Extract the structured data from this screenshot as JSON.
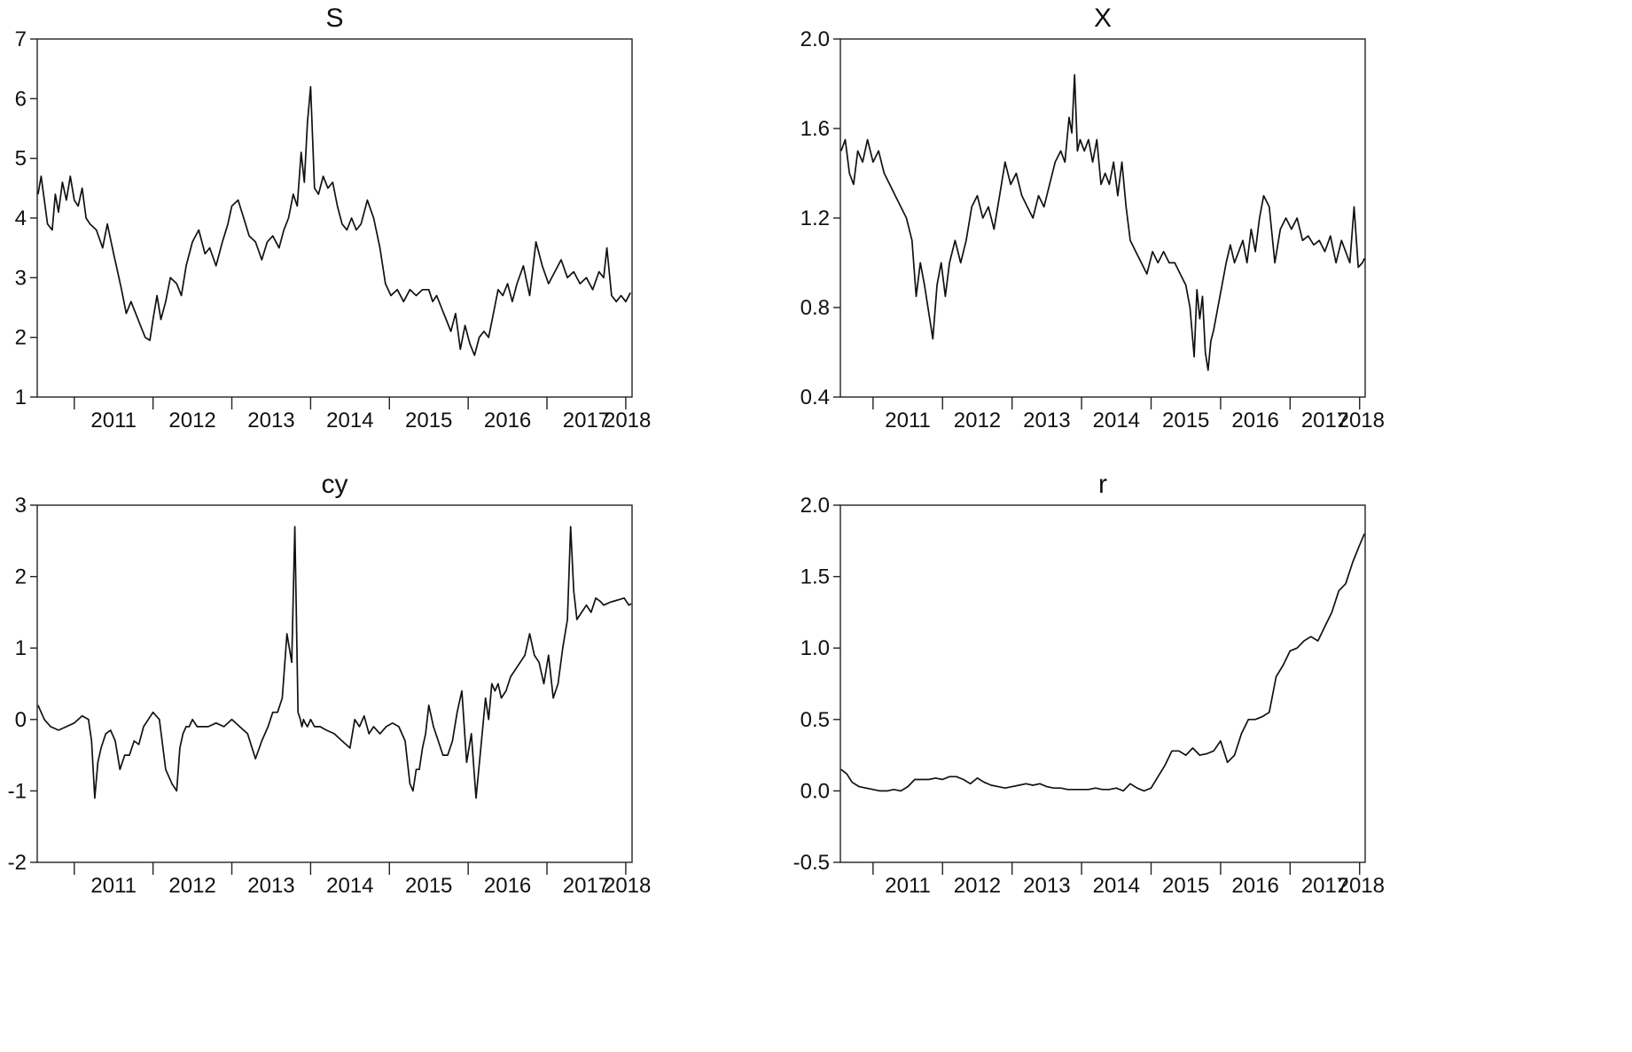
{
  "chart_data": [
    {
      "type": "line",
      "title": "S",
      "ylim": [
        1,
        7
      ],
      "yticks": [
        1,
        2,
        3,
        4,
        5,
        6,
        7
      ],
      "ytick_labels": [
        "1",
        "2",
        "3",
        "4",
        "5",
        "6",
        "7"
      ],
      "xlim": [
        2010.53,
        2018.08
      ],
      "xtick_labels": [
        "2011",
        "2012",
        "2013",
        "2014",
        "2015",
        "2016",
        "2017",
        "2018"
      ],
      "grid": false,
      "series": [
        {
          "x": [
            2010.54,
            2010.58,
            2010.62,
            2010.66,
            2010.72,
            2010.76,
            2010.8,
            2010.85,
            2010.9,
            2010.95,
            2011.0,
            2011.05,
            2011.1,
            2011.15,
            2011.2,
            2011.28,
            2011.36,
            2011.42,
            2011.5,
            2011.55,
            2011.6,
            2011.66,
            2011.72,
            2011.78,
            2011.84,
            2011.9,
            2011.96,
            2012.0,
            2012.05,
            2012.1,
            2012.16,
            2012.22,
            2012.3,
            2012.36,
            2012.42,
            2012.5,
            2012.58,
            2012.66,
            2012.72,
            2012.8,
            2012.88,
            2012.95,
            2013.0,
            2013.08,
            2013.15,
            2013.22,
            2013.3,
            2013.38,
            2013.45,
            2013.52,
            2013.6,
            2013.66,
            2013.72,
            2013.78,
            2013.83,
            2013.88,
            2013.92,
            2013.96,
            2014.0,
            2014.05,
            2014.1,
            2014.16,
            2014.22,
            2014.28,
            2014.34,
            2014.4,
            2014.46,
            2014.52,
            2014.58,
            2014.64,
            2014.72,
            2014.8,
            2014.88,
            2014.95,
            2015.02,
            2015.1,
            2015.18,
            2015.26,
            2015.34,
            2015.42,
            2015.5,
            2015.55,
            2015.6,
            2015.66,
            2015.72,
            2015.78,
            2015.84,
            2015.9,
            2015.96,
            2016.02,
            2016.08,
            2016.14,
            2016.2,
            2016.26,
            2016.32,
            2016.38,
            2016.44,
            2016.5,
            2016.56,
            2016.62,
            2016.7,
            2016.78,
            2016.86,
            2016.94,
            2017.02,
            2017.1,
            2017.18,
            2017.26,
            2017.34,
            2017.42,
            2017.5,
            2017.58,
            2017.66,
            2017.72,
            2017.76,
            2017.82,
            2017.88,
            2017.94,
            2018.0,
            2018.06
          ],
          "values": [
            4.4,
            4.7,
            4.3,
            3.9,
            3.8,
            4.4,
            4.1,
            4.6,
            4.3,
            4.7,
            4.3,
            4.2,
            4.5,
            4.0,
            3.9,
            3.8,
            3.5,
            3.9,
            3.4,
            3.1,
            2.8,
            2.4,
            2.6,
            2.4,
            2.2,
            2.0,
            1.95,
            2.3,
            2.7,
            2.3,
            2.6,
            3.0,
            2.9,
            2.7,
            3.2,
            3.6,
            3.8,
            3.4,
            3.5,
            3.2,
            3.6,
            3.9,
            4.2,
            4.3,
            4.0,
            3.7,
            3.6,
            3.3,
            3.6,
            3.7,
            3.5,
            3.8,
            4.0,
            4.4,
            4.2,
            5.1,
            4.6,
            5.6,
            6.2,
            4.5,
            4.4,
            4.7,
            4.5,
            4.6,
            4.2,
            3.9,
            3.8,
            4.0,
            3.8,
            3.9,
            4.3,
            4.0,
            3.5,
            2.9,
            2.7,
            2.8,
            2.6,
            2.8,
            2.7,
            2.8,
            2.8,
            2.6,
            2.7,
            2.5,
            2.3,
            2.1,
            2.4,
            1.8,
            2.2,
            1.9,
            1.7,
            2.0,
            2.1,
            2.0,
            2.4,
            2.8,
            2.7,
            2.9,
            2.6,
            2.9,
            3.2,
            2.7,
            3.6,
            3.2,
            2.9,
            3.1,
            3.3,
            3.0,
            3.1,
            2.9,
            3.0,
            2.8,
            3.1,
            3.0,
            3.5,
            2.7,
            2.6,
            2.7,
            2.6,
            2.75
          ]
        }
      ]
    },
    {
      "type": "line",
      "title": "X",
      "ylim": [
        0.4,
        2.0
      ],
      "yticks": [
        0.4,
        0.8,
        1.2,
        1.6,
        2.0
      ],
      "ytick_labels": [
        "0.4",
        "0.8",
        "1.2",
        "1.6",
        "2.0"
      ],
      "xlim": [
        2010.53,
        2018.08
      ],
      "xtick_labels": [
        "2011",
        "2012",
        "2013",
        "2014",
        "2015",
        "2016",
        "2017",
        "2018"
      ],
      "grid": false,
      "series": [
        {
          "x": [
            2010.54,
            2010.6,
            2010.66,
            2010.72,
            2010.78,
            2010.85,
            2010.92,
            2011.0,
            2011.08,
            2011.16,
            2011.24,
            2011.32,
            2011.4,
            2011.48,
            2011.56,
            2011.62,
            2011.68,
            2011.74,
            2011.8,
            2011.86,
            2011.92,
            2011.98,
            2012.04,
            2012.1,
            2012.18,
            2012.26,
            2012.34,
            2012.42,
            2012.5,
            2012.58,
            2012.66,
            2012.74,
            2012.82,
            2012.9,
            2012.98,
            2013.06,
            2013.14,
            2013.22,
            2013.3,
            2013.38,
            2013.46,
            2013.54,
            2013.62,
            2013.7,
            2013.76,
            2013.82,
            2013.86,
            2013.9,
            2013.94,
            2013.98,
            2014.04,
            2014.1,
            2014.16,
            2014.22,
            2014.28,
            2014.34,
            2014.4,
            2014.46,
            2014.52,
            2014.58,
            2014.64,
            2014.7,
            2014.78,
            2014.86,
            2014.94,
            2015.02,
            2015.1,
            2015.18,
            2015.26,
            2015.34,
            2015.42,
            2015.5,
            2015.56,
            2015.62,
            2015.66,
            2015.7,
            2015.74,
            2015.78,
            2015.82,
            2015.86,
            2015.9,
            2015.96,
            2016.02,
            2016.08,
            2016.14,
            2016.2,
            2016.26,
            2016.32,
            2016.38,
            2016.44,
            2016.5,
            2016.56,
            2016.62,
            2016.7,
            2016.78,
            2016.86,
            2016.94,
            2017.02,
            2017.1,
            2017.18,
            2017.26,
            2017.34,
            2017.42,
            2017.5,
            2017.58,
            2017.66,
            2017.74,
            2017.8,
            2017.86,
            2017.92,
            2017.98,
            2018.04,
            2018.07
          ],
          "values": [
            1.5,
            1.55,
            1.4,
            1.35,
            1.5,
            1.45,
            1.55,
            1.45,
            1.5,
            1.4,
            1.35,
            1.3,
            1.25,
            1.2,
            1.1,
            0.85,
            1.0,
            0.9,
            0.78,
            0.66,
            0.9,
            1.0,
            0.85,
            1.0,
            1.1,
            1.0,
            1.1,
            1.25,
            1.3,
            1.2,
            1.25,
            1.15,
            1.3,
            1.45,
            1.35,
            1.4,
            1.3,
            1.25,
            1.2,
            1.3,
            1.25,
            1.35,
            1.45,
            1.5,
            1.45,
            1.65,
            1.58,
            1.84,
            1.5,
            1.55,
            1.5,
            1.55,
            1.45,
            1.55,
            1.35,
            1.4,
            1.35,
            1.45,
            1.3,
            1.45,
            1.25,
            1.1,
            1.05,
            1.0,
            0.95,
            1.05,
            1.0,
            1.05,
            1.0,
            1.0,
            0.95,
            0.9,
            0.8,
            0.58,
            0.88,
            0.75,
            0.85,
            0.6,
            0.52,
            0.65,
            0.7,
            0.8,
            0.9,
            1.0,
            1.08,
            1.0,
            1.05,
            1.1,
            1.0,
            1.15,
            1.05,
            1.2,
            1.3,
            1.25,
            1.0,
            1.15,
            1.2,
            1.15,
            1.2,
            1.1,
            1.12,
            1.08,
            1.1,
            1.05,
            1.12,
            1.0,
            1.1,
            1.05,
            1.0,
            1.25,
            0.98,
            1.0,
            1.02
          ]
        }
      ]
    },
    {
      "type": "line",
      "title": "cy",
      "ylim": [
        -2,
        3
      ],
      "yticks": [
        -2,
        -1,
        0,
        1,
        2,
        3
      ],
      "ytick_labels": [
        "-2",
        "-1",
        "0",
        "1",
        "2",
        "3"
      ],
      "xlim": [
        2010.53,
        2018.08
      ],
      "xtick_labels": [
        "2011",
        "2012",
        "2013",
        "2014",
        "2015",
        "2016",
        "2017",
        "2018"
      ],
      "grid": false,
      "series": [
        {
          "x": [
            2010.54,
            2010.62,
            2010.7,
            2010.8,
            2010.9,
            2011.0,
            2011.1,
            2011.18,
            2011.22,
            2011.26,
            2011.3,
            2011.34,
            2011.4,
            2011.46,
            2011.52,
            2011.58,
            2011.64,
            2011.7,
            2011.76,
            2011.82,
            2011.88,
            2011.94,
            2012.0,
            2012.08,
            2012.16,
            2012.24,
            2012.3,
            2012.34,
            2012.38,
            2012.42,
            2012.46,
            2012.5,
            2012.56,
            2012.62,
            2012.7,
            2012.8,
            2012.9,
            2013.0,
            2013.1,
            2013.2,
            2013.3,
            2013.38,
            2013.46,
            2013.52,
            2013.58,
            2013.64,
            2013.7,
            2013.76,
            2013.8,
            2013.84,
            2013.87,
            2013.89,
            2013.91,
            2013.93,
            2013.96,
            2014.0,
            2014.05,
            2014.12,
            2014.2,
            2014.3,
            2014.4,
            2014.5,
            2014.56,
            2014.62,
            2014.68,
            2014.74,
            2014.8,
            2014.88,
            2014.96,
            2015.04,
            2015.12,
            2015.2,
            2015.26,
            2015.3,
            2015.34,
            2015.38,
            2015.42,
            2015.46,
            2015.5,
            2015.56,
            2015.62,
            2015.68,
            2015.74,
            2015.8,
            2015.86,
            2015.92,
            2015.98,
            2016.04,
            2016.1,
            2016.16,
            2016.22,
            2016.26,
            2016.3,
            2016.34,
            2016.38,
            2016.42,
            2016.48,
            2016.54,
            2016.6,
            2016.66,
            2016.72,
            2016.78,
            2016.84,
            2016.9,
            2016.96,
            2017.02,
            2017.08,
            2017.14,
            2017.2,
            2017.26,
            2017.3,
            2017.34,
            2017.38,
            2017.44,
            2017.5,
            2017.56,
            2017.62,
            2017.68,
            2017.72,
            2017.76,
            2017.8,
            2017.86,
            2017.92,
            2017.98,
            2018.04,
            2018.07
          ],
          "values": [
            0.2,
            0.0,
            -0.1,
            -0.15,
            -0.1,
            -0.05,
            0.05,
            0.0,
            -0.3,
            -1.1,
            -0.6,
            -0.4,
            -0.2,
            -0.15,
            -0.3,
            -0.7,
            -0.5,
            -0.5,
            -0.3,
            -0.35,
            -0.1,
            0.0,
            0.1,
            0.0,
            -0.7,
            -0.9,
            -1.0,
            -0.4,
            -0.2,
            -0.1,
            -0.1,
            0.0,
            -0.1,
            -0.1,
            -0.1,
            -0.05,
            -0.1,
            0.0,
            -0.1,
            -0.2,
            -0.55,
            -0.3,
            -0.1,
            0.1,
            0.1,
            0.3,
            1.2,
            0.8,
            2.7,
            0.1,
            0.0,
            -0.1,
            0.0,
            -0.05,
            -0.1,
            0.0,
            -0.1,
            -0.1,
            -0.15,
            -0.2,
            -0.3,
            -0.4,
            0.0,
            -0.1,
            0.05,
            -0.2,
            -0.1,
            -0.2,
            -0.1,
            -0.05,
            -0.1,
            -0.3,
            -0.9,
            -1.0,
            -0.7,
            -0.7,
            -0.4,
            -0.2,
            0.2,
            -0.1,
            -0.3,
            -0.5,
            -0.5,
            -0.3,
            0.1,
            0.4,
            -0.6,
            -0.2,
            -1.1,
            -0.4,
            0.3,
            0.0,
            0.5,
            0.4,
            0.5,
            0.3,
            0.4,
            0.6,
            0.7,
            0.8,
            0.9,
            1.2,
            0.9,
            0.8,
            0.5,
            0.9,
            0.3,
            0.5,
            1.0,
            1.4,
            2.7,
            1.8,
            1.4,
            1.5,
            1.6,
            1.5,
            1.7,
            1.65,
            1.6,
            1.62,
            1.64,
            1.66,
            1.68,
            1.7,
            1.6,
            1.62
          ]
        }
      ]
    },
    {
      "type": "line",
      "title": "r",
      "ylim": [
        -0.5,
        2.0
      ],
      "yticks": [
        -0.5,
        0.0,
        0.5,
        1.0,
        1.5,
        2.0
      ],
      "ytick_labels": [
        "-0.5",
        "0.0",
        "0.5",
        "1.0",
        "1.5",
        "2.0"
      ],
      "xlim": [
        2010.53,
        2018.08
      ],
      "xtick_labels": [
        "2011",
        "2012",
        "2013",
        "2014",
        "2015",
        "2016",
        "2017",
        "2018"
      ],
      "grid": false,
      "series": [
        {
          "x": [
            2010.54,
            2010.62,
            2010.7,
            2010.8,
            2010.9,
            2011.0,
            2011.1,
            2011.2,
            2011.3,
            2011.4,
            2011.5,
            2011.6,
            2011.7,
            2011.8,
            2011.9,
            2012.0,
            2012.1,
            2012.2,
            2012.3,
            2012.4,
            2012.5,
            2012.6,
            2012.7,
            2012.8,
            2012.9,
            2013.0,
            2013.1,
            2013.2,
            2013.3,
            2013.4,
            2013.5,
            2013.6,
            2013.7,
            2013.8,
            2013.9,
            2014.0,
            2014.1,
            2014.2,
            2014.3,
            2014.4,
            2014.5,
            2014.6,
            2014.7,
            2014.8,
            2014.9,
            2015.0,
            2015.1,
            2015.2,
            2015.3,
            2015.4,
            2015.5,
            2015.6,
            2015.7,
            2015.8,
            2015.9,
            2016.0,
            2016.1,
            2016.2,
            2016.3,
            2016.4,
            2016.5,
            2016.6,
            2016.7,
            2016.8,
            2016.9,
            2017.0,
            2017.1,
            2017.2,
            2017.3,
            2017.4,
            2017.5,
            2017.6,
            2017.7,
            2017.8,
            2017.9,
            2018.0,
            2018.07
          ],
          "values": [
            0.15,
            0.12,
            0.06,
            0.03,
            0.02,
            0.01,
            0.0,
            0.0,
            0.01,
            0.0,
            0.03,
            0.08,
            0.08,
            0.08,
            0.09,
            0.08,
            0.1,
            0.1,
            0.08,
            0.05,
            0.09,
            0.06,
            0.04,
            0.03,
            0.02,
            0.03,
            0.04,
            0.05,
            0.04,
            0.05,
            0.03,
            0.02,
            0.02,
            0.01,
            0.01,
            0.01,
            0.01,
            0.02,
            0.01,
            0.01,
            0.02,
            0.0,
            0.05,
            0.02,
            0.0,
            0.02,
            0.1,
            0.18,
            0.28,
            0.28,
            0.25,
            0.3,
            0.25,
            0.26,
            0.28,
            0.35,
            0.2,
            0.25,
            0.4,
            0.5,
            0.5,
            0.52,
            0.55,
            0.8,
            0.88,
            0.98,
            1.0,
            1.05,
            1.08,
            1.05,
            1.15,
            1.25,
            1.4,
            1.45,
            1.6,
            1.72,
            1.8
          ]
        }
      ]
    }
  ]
}
